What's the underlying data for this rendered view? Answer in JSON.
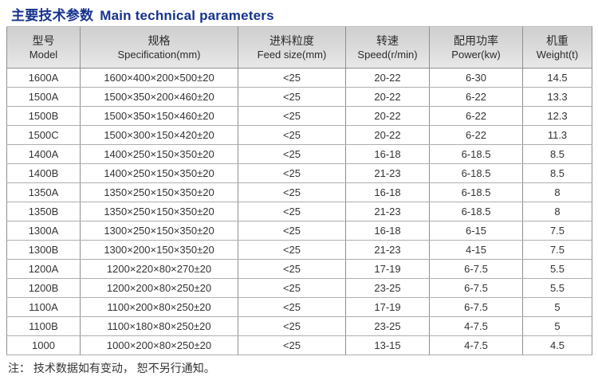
{
  "title": {
    "zh": "主要技术参数",
    "en": "Main technical parameters"
  },
  "colors": {
    "title_blue": "#17338f",
    "header_bg": "#dcdcdc",
    "border_outer": "#7d7d7d",
    "border_inner": "#aeaeae",
    "text": "#333333"
  },
  "table": {
    "columns": [
      {
        "zh": "型号",
        "en": "Model"
      },
      {
        "zh": "规格",
        "en": "Specification(mm)"
      },
      {
        "zh": "进料粒度",
        "en": "Feed size(mm)"
      },
      {
        "zh": "转速",
        "en": "Speed(r/min)"
      },
      {
        "zh": "配用功率",
        "en": "Power(kw)"
      },
      {
        "zh": "机重",
        "en": "Weight(t)"
      }
    ],
    "rows": [
      [
        "1600A",
        "1600×400×200×500±20",
        "<25",
        "20-22",
        "6-30",
        "14.5"
      ],
      [
        "1500A",
        "1500×350×200×460±20",
        "<25",
        "20-22",
        "6-22",
        "13.3"
      ],
      [
        "1500B",
        "1500×350×150×460±20",
        "<25",
        "20-22",
        "6-22",
        "12.3"
      ],
      [
        "1500C",
        "1500×300×150×420±20",
        "<25",
        "20-22",
        "6-22",
        "11.3"
      ],
      [
        "1400A",
        "1400×250×150×350±20",
        "<25",
        "16-18",
        "6-18.5",
        "8.5"
      ],
      [
        "1400B",
        "1400×250×150×350±20",
        "<25",
        "21-23",
        "6-18.5",
        "8.5"
      ],
      [
        "1350A",
        "1350×250×150×350±20",
        "<25",
        "16-18",
        "6-18.5",
        "8"
      ],
      [
        "1350B",
        "1350×250×150×350±20",
        "<25",
        "21-23",
        "6-18.5",
        "8"
      ],
      [
        "1300A",
        "1300×250×150×350±20",
        "<25",
        "16-18",
        "6-15",
        "7.5"
      ],
      [
        "1300B",
        "1300×200×150×350±20",
        "<25",
        "21-23",
        "4-15",
        "7.5"
      ],
      [
        "1200A",
        "1200×220×80×270±20",
        "<25",
        "17-19",
        "6-7.5",
        "5.5"
      ],
      [
        "1200B",
        "1200×200×80×250±20",
        "<25",
        "23-25",
        "6-7.5",
        "5.5"
      ],
      [
        "1100A",
        "1100×200×80×250±20",
        "<25",
        "17-19",
        "6-7.5",
        "5"
      ],
      [
        "1100B",
        "1100×180×80×250±20",
        "<25",
        "23-25",
        "4-7.5",
        "5"
      ],
      [
        "1000",
        "1000×200×80×250±20",
        "<25",
        "13-15",
        "4-7.5",
        "4.5"
      ]
    ]
  },
  "note": "注： 技术数据如有变动， 恕不另行通知。"
}
